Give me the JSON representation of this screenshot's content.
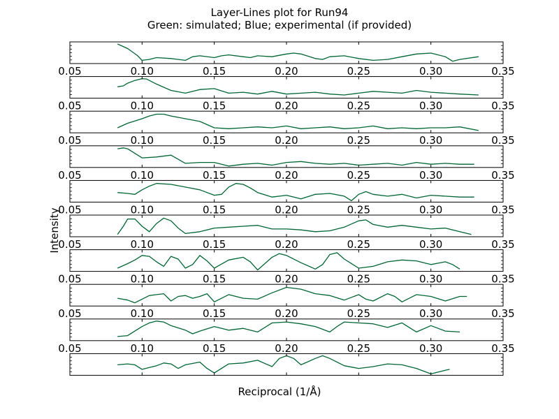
{
  "chart_data": {
    "type": "line",
    "title": "Layer-Lines plot for Run94",
    "subtitle": "Green: simulated; Blue; experimental (if provided)",
    "xlabel": "Reciprocal (1/Å)",
    "ylabel": "Intensity",
    "xlim": [
      0.05,
      0.35
    ],
    "xticks": [
      0.05,
      0.1,
      0.15,
      0.2,
      0.25,
      0.3,
      0.35
    ],
    "xtick_labels": [
      "0.05",
      "0.10",
      "0.15",
      "0.20",
      "0.25",
      "0.30",
      "0.35"
    ],
    "grid": false,
    "line_color": "#006633",
    "ylim": [
      0,
      1
    ],
    "panels": [
      {
        "x": [
          0.083,
          0.09,
          0.097,
          0.1,
          0.105,
          0.11,
          0.12,
          0.13,
          0.135,
          0.14,
          0.15,
          0.155,
          0.16,
          0.17,
          0.175,
          0.18,
          0.19,
          0.2,
          0.205,
          0.21,
          0.22,
          0.225,
          0.23,
          0.24,
          0.25,
          0.26,
          0.27,
          0.28,
          0.29,
          0.3,
          0.31,
          0.315,
          0.32,
          0.333
        ],
        "y": [
          1.0,
          0.75,
          0.35,
          0.1,
          0.15,
          0.25,
          0.2,
          0.1,
          0.3,
          0.35,
          0.25,
          0.35,
          0.4,
          0.3,
          0.25,
          0.35,
          0.3,
          0.45,
          0.5,
          0.45,
          0.2,
          0.15,
          0.3,
          0.35,
          0.2,
          0.1,
          0.15,
          0.3,
          0.45,
          0.5,
          0.3,
          0.05,
          0.15,
          0.3
        ]
      },
      {
        "x": [
          0.083,
          0.087,
          0.09,
          0.095,
          0.1,
          0.103,
          0.105,
          0.11,
          0.12,
          0.13,
          0.14,
          0.15,
          0.16,
          0.17,
          0.18,
          0.19,
          0.2,
          0.21,
          0.22,
          0.23,
          0.24,
          0.25,
          0.26,
          0.27,
          0.28,
          0.29,
          0.3,
          0.31,
          0.32,
          0.333
        ],
        "y": [
          0.55,
          0.6,
          0.75,
          0.9,
          1.0,
          0.98,
          0.9,
          0.7,
          0.35,
          0.2,
          0.4,
          0.45,
          0.2,
          0.25,
          0.15,
          0.3,
          0.15,
          0.2,
          0.25,
          0.15,
          0.1,
          0.2,
          0.3,
          0.25,
          0.2,
          0.35,
          0.25,
          0.2,
          0.15,
          0.1
        ]
      },
      {
        "x": [
          0.083,
          0.09,
          0.1,
          0.105,
          0.11,
          0.115,
          0.12,
          0.13,
          0.14,
          0.15,
          0.16,
          0.17,
          0.18,
          0.19,
          0.2,
          0.21,
          0.22,
          0.23,
          0.24,
          0.25,
          0.26,
          0.27,
          0.28,
          0.29,
          0.3,
          0.31,
          0.32,
          0.333
        ],
        "y": [
          0.2,
          0.45,
          0.7,
          0.85,
          0.95,
          0.95,
          0.85,
          0.7,
          0.55,
          0.2,
          0.15,
          0.2,
          0.25,
          0.2,
          0.3,
          0.15,
          0.2,
          0.25,
          0.15,
          0.2,
          0.3,
          0.15,
          0.2,
          0.15,
          0.2,
          0.2,
          0.25,
          0.05
        ]
      },
      {
        "x": [
          0.083,
          0.087,
          0.09,
          0.095,
          0.1,
          0.11,
          0.12,
          0.13,
          0.14,
          0.15,
          0.16,
          0.17,
          0.18,
          0.19,
          0.2,
          0.21,
          0.22,
          0.23,
          0.24,
          0.25,
          0.26,
          0.27,
          0.28,
          0.29,
          0.3,
          0.31,
          0.32,
          0.33
        ],
        "y": [
          0.95,
          1.0,
          0.95,
          0.7,
          0.45,
          0.5,
          0.6,
          0.15,
          0.2,
          0.2,
          0.0,
          0.1,
          0.15,
          0.05,
          0.2,
          0.25,
          0.15,
          0.1,
          0.15,
          0.05,
          0.1,
          0.15,
          0.05,
          0.2,
          0.1,
          0.15,
          0.1,
          0.1
        ]
      },
      {
        "x": [
          0.083,
          0.09,
          0.095,
          0.1,
          0.105,
          0.11,
          0.12,
          0.13,
          0.14,
          0.15,
          0.155,
          0.16,
          0.165,
          0.17,
          0.175,
          0.18,
          0.19,
          0.2,
          0.21,
          0.22,
          0.23,
          0.24,
          0.245,
          0.25,
          0.255,
          0.26,
          0.27,
          0.28,
          0.29,
          0.3,
          0.31,
          0.32,
          0.33
        ],
        "y": [
          0.45,
          0.4,
          0.35,
          0.6,
          0.8,
          0.95,
          0.9,
          0.75,
          0.6,
          0.3,
          0.35,
          0.75,
          0.95,
          0.9,
          0.7,
          0.45,
          0.2,
          0.3,
          0.1,
          0.35,
          0.4,
          0.25,
          0.0,
          0.35,
          0.5,
          0.35,
          0.25,
          0.35,
          0.15,
          0.3,
          0.25,
          0.2,
          0.2
        ]
      },
      {
        "x": [
          0.083,
          0.087,
          0.09,
          0.095,
          0.1,
          0.105,
          0.11,
          0.115,
          0.12,
          0.125,
          0.13,
          0.14,
          0.15,
          0.16,
          0.17,
          0.18,
          0.19,
          0.2,
          0.21,
          0.22,
          0.23,
          0.24,
          0.25,
          0.255,
          0.26,
          0.27,
          0.28,
          0.29,
          0.3,
          0.31,
          0.32,
          0.328
        ],
        "y": [
          0.05,
          0.5,
          0.9,
          0.9,
          0.5,
          0.2,
          0.65,
          0.95,
          0.8,
          0.4,
          0.1,
          0.2,
          0.4,
          0.45,
          0.5,
          0.55,
          0.35,
          0.35,
          0.3,
          0.2,
          0.25,
          0.45,
          0.8,
          0.85,
          0.6,
          0.45,
          0.55,
          0.45,
          0.35,
          0.4,
          0.2,
          0.05
        ]
      },
      {
        "x": [
          0.083,
          0.09,
          0.095,
          0.1,
          0.105,
          0.11,
          0.115,
          0.12,
          0.125,
          0.13,
          0.135,
          0.14,
          0.145,
          0.15,
          0.16,
          0.17,
          0.175,
          0.18,
          0.19,
          0.195,
          0.2,
          0.21,
          0.22,
          0.225,
          0.23,
          0.235,
          0.24,
          0.25,
          0.26,
          0.27,
          0.28,
          0.29,
          0.3,
          0.31,
          0.315,
          0.32
        ],
        "y": [
          0.1,
          0.35,
          0.55,
          0.8,
          0.75,
          0.45,
          0.2,
          0.75,
          0.6,
          0.1,
          0.3,
          0.8,
          0.5,
          0.1,
          0.55,
          0.7,
          0.45,
          0.0,
          0.7,
          0.9,
          0.8,
          0.4,
          0.05,
          0.3,
          0.85,
          0.95,
          0.6,
          0.1,
          0.2,
          0.45,
          0.55,
          0.5,
          0.3,
          0.45,
          0.3,
          0.05
        ]
      },
      {
        "x": [
          0.083,
          0.09,
          0.095,
          0.1,
          0.105,
          0.11,
          0.115,
          0.12,
          0.125,
          0.13,
          0.135,
          0.14,
          0.145,
          0.15,
          0.16,
          0.17,
          0.18,
          0.19,
          0.2,
          0.21,
          0.22,
          0.23,
          0.24,
          0.245,
          0.25,
          0.255,
          0.26,
          0.27,
          0.275,
          0.28,
          0.29,
          0.3,
          0.31,
          0.32,
          0.325
        ],
        "y": [
          0.35,
          0.25,
          0.1,
          0.3,
          0.5,
          0.55,
          0.6,
          0.2,
          0.45,
          0.5,
          0.35,
          0.45,
          0.6,
          0.15,
          0.55,
          0.35,
          0.3,
          0.65,
          0.95,
          0.85,
          0.6,
          0.5,
          0.25,
          0.4,
          0.55,
          0.3,
          0.2,
          0.6,
          0.45,
          0.15,
          0.55,
          0.45,
          0.2,
          0.45,
          0.45
        ]
      },
      {
        "x": [
          0.083,
          0.09,
          0.1,
          0.105,
          0.11,
          0.115,
          0.12,
          0.13,
          0.135,
          0.14,
          0.15,
          0.16,
          0.17,
          0.18,
          0.19,
          0.2,
          0.21,
          0.22,
          0.23,
          0.235,
          0.24,
          0.25,
          0.26,
          0.27,
          0.28,
          0.29,
          0.3,
          0.31,
          0.32
        ],
        "y": [
          0.15,
          0.2,
          0.7,
          0.9,
          1.0,
          0.95,
          0.75,
          0.5,
          0.3,
          0.45,
          0.7,
          0.5,
          0.6,
          0.4,
          0.9,
          0.95,
          0.85,
          0.7,
          0.4,
          0.7,
          0.95,
          0.9,
          0.85,
          0.65,
          0.9,
          0.4,
          0.75,
          0.45,
          0.4
        ]
      },
      {
        "x": [
          0.083,
          0.09,
          0.095,
          0.1,
          0.105,
          0.11,
          0.115,
          0.12,
          0.125,
          0.13,
          0.14,
          0.145,
          0.15,
          0.16,
          0.17,
          0.18,
          0.19,
          0.195,
          0.2,
          0.205,
          0.21,
          0.22,
          0.225,
          0.23,
          0.24,
          0.25,
          0.26,
          0.27,
          0.28,
          0.29,
          0.3,
          0.31,
          0.313
        ],
        "y": [
          0.5,
          0.55,
          0.5,
          0.25,
          0.35,
          0.45,
          0.6,
          0.55,
          0.3,
          0.5,
          0.65,
          0.3,
          0.05,
          0.55,
          0.6,
          0.75,
          0.4,
          0.85,
          1.0,
          0.85,
          0.5,
          0.85,
          1.0,
          0.85,
          0.45,
          0.3,
          0.4,
          0.55,
          0.5,
          0.3,
          0.0,
          0.2,
          0.25
        ]
      }
    ]
  }
}
